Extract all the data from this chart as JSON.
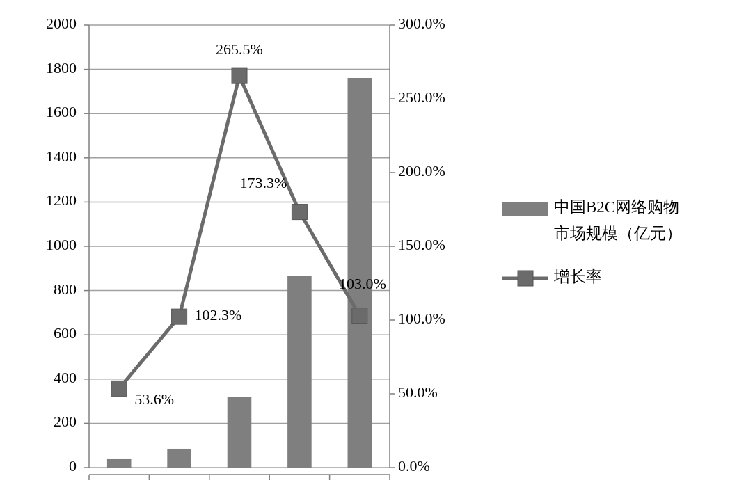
{
  "chart_data": {
    "type": "bar",
    "categories": [
      null,
      null,
      null,
      null,
      null
    ],
    "series": [
      {
        "name": "中国B2C网络购物市场规模（亿元）",
        "color": "#7f7f7f",
        "values": [
          41,
          85,
          318,
          865,
          1761
        ]
      },
      {
        "name": "增长率",
        "type": "line",
        "axis": "y2",
        "color": "#6b6b6b",
        "marker": "square",
        "values": [
          53.6,
          102.3,
          265.5,
          173.3,
          103.0
        ],
        "value_labels": [
          "53.6%",
          "102.3%",
          "265.5%",
          "173.3%",
          "103.0%"
        ]
      }
    ],
    "ylim": [
      0,
      2000
    ],
    "yticks": [
      0,
      200,
      400,
      600,
      800,
      1000,
      1200,
      1400,
      1600,
      1800,
      2000
    ],
    "y2lim": [
      0,
      300
    ],
    "y2ticks": [
      {
        "value": 0,
        "label": "0.0%"
      },
      {
        "value": 50,
        "label": "50.0%"
      },
      {
        "value": 100,
        "label": "100.0%"
      },
      {
        "value": 150,
        "label": "150.0%"
      },
      {
        "value": 200,
        "label": "200.0%"
      },
      {
        "value": 250,
        "label": "250.0%"
      },
      {
        "value": 300,
        "label": "300.0%"
      }
    ],
    "grid": "y",
    "legend": "right"
  }
}
